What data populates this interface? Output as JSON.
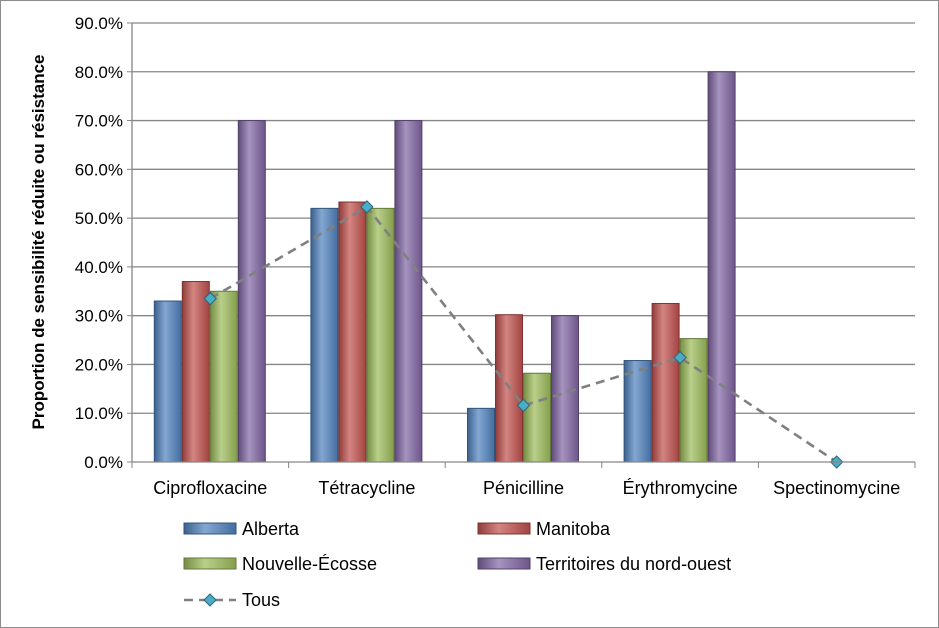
{
  "chart_data": {
    "type": "bar",
    "ylabel": "Proportion de sensibilité réduite ou résistance",
    "xlabel": "",
    "ylim": [
      0,
      90
    ],
    "yticks": [
      "0.0%",
      "10.0%",
      "20.0%",
      "30.0%",
      "40.0%",
      "50.0%",
      "60.0%",
      "70.0%",
      "80.0%",
      "90.0%"
    ],
    "grid": true,
    "legend_position": "bottom",
    "categories": [
      "Ciprofloxacine",
      "Tétracycline",
      "Pénicilline",
      "Érythromycine",
      "Spectinomycine"
    ],
    "series": [
      {
        "name": "Alberta",
        "kind": "bar",
        "color": "#4F81BD",
        "values": [
          33.0,
          52.0,
          11.0,
          20.8,
          0
        ]
      },
      {
        "name": "Manitoba",
        "kind": "bar",
        "color": "#C0504D",
        "values": [
          37.0,
          53.3,
          30.2,
          32.5,
          0
        ]
      },
      {
        "name": "Nouvelle-Écosse",
        "kind": "bar",
        "color": "#9BBB59",
        "values": [
          35.0,
          52.0,
          18.2,
          25.3,
          0
        ]
      },
      {
        "name": "Territoires du nord-ouest",
        "kind": "bar",
        "color": "#8064A2",
        "values": [
          70.0,
          70.0,
          30.0,
          80.0,
          0
        ]
      },
      {
        "name": "Tous",
        "kind": "line",
        "color": "#808080",
        "marker_color": "#4BACC6",
        "values": [
          33.5,
          52.3,
          11.6,
          21.4,
          0.0
        ]
      }
    ]
  }
}
